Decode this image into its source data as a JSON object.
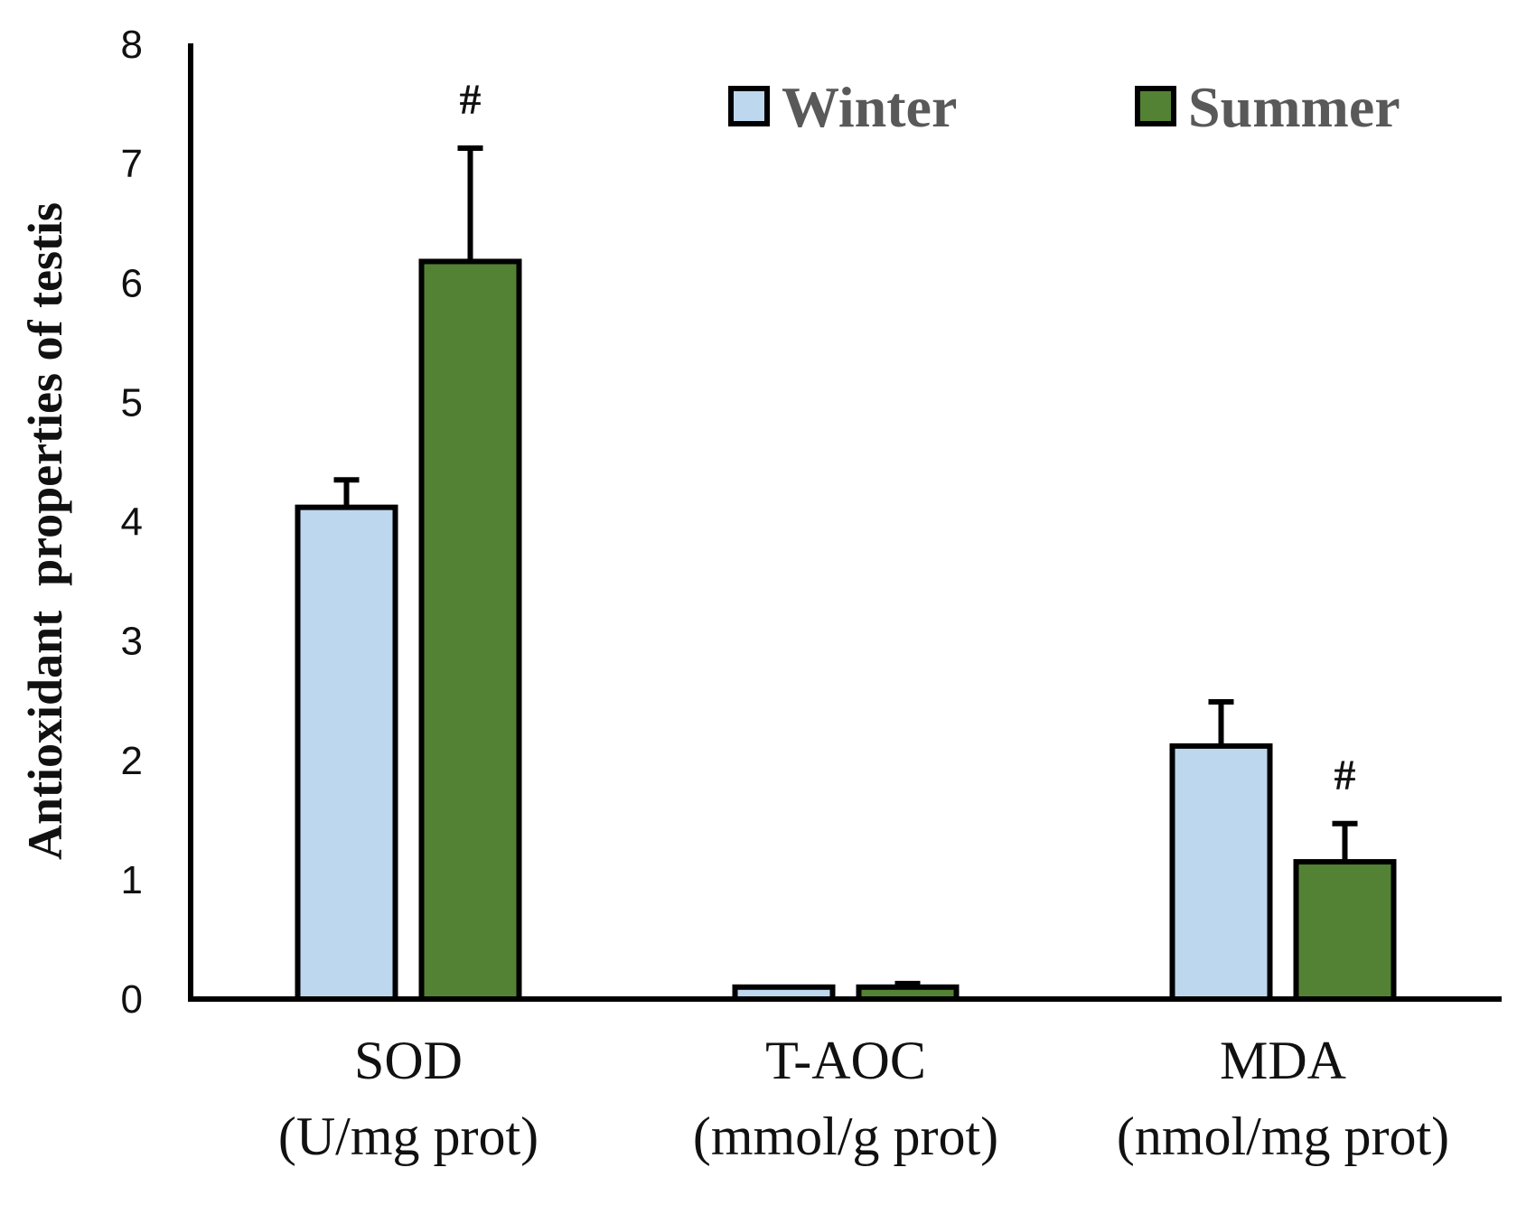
{
  "chart_data": {
    "type": "bar",
    "title": "",
    "ylabel": "Antioxidant  properties of testis",
    "xlabel": "",
    "ylim": [
      0,
      8
    ],
    "yticks": [
      0,
      1,
      2,
      3,
      4,
      5,
      6,
      7,
      8
    ],
    "grid": false,
    "legend_placement": "top-right",
    "categories": [
      {
        "name": "SOD",
        "unit": "(U/mg prot)"
      },
      {
        "name": "T-AOC",
        "unit": "(mmol/g prot)"
      },
      {
        "name": "MDA",
        "unit": "(nmol/mg prot)"
      }
    ],
    "series": [
      {
        "name": "Winter",
        "color": "#bdd7ee",
        "values": [
          4.12,
          0.1,
          2.12
        ],
        "errors": [
          0.23,
          0.0,
          0.37
        ]
      },
      {
        "name": "Summer",
        "color": "#548235",
        "values": [
          6.18,
          0.1,
          1.15
        ],
        "errors": [
          0.95,
          0.03,
          0.32
        ]
      }
    ],
    "annotations": [
      {
        "category": "SOD",
        "series": "Summer",
        "text": "#"
      },
      {
        "category": "MDA",
        "series": "Summer",
        "text": "#"
      }
    ]
  }
}
